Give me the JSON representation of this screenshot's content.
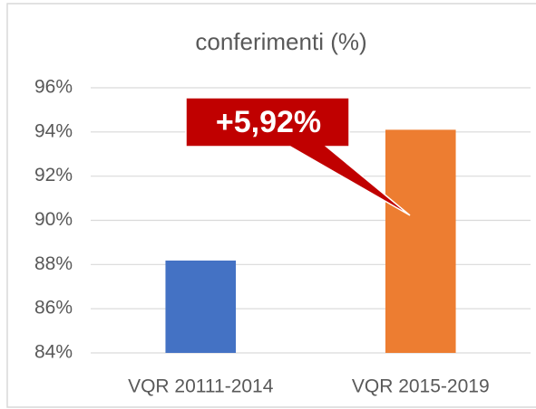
{
  "chart_data": {
    "type": "bar",
    "title": "conferimenti (%)",
    "categories": [
      "VQR 20111-2014",
      "VQR 2015-2019"
    ],
    "values": [
      88.18,
      94.1
    ],
    "colors": [
      "#4472c4",
      "#ed7d31"
    ],
    "ylim": [
      84,
      96
    ],
    "yticks": [
      {
        "value": 84,
        "label": "84%"
      },
      {
        "value": 86,
        "label": "86%"
      },
      {
        "value": 88,
        "label": "88%"
      },
      {
        "value": 90,
        "label": "90%"
      },
      {
        "value": 92,
        "label": "92%"
      },
      {
        "value": 94,
        "label": "94%"
      },
      {
        "value": 96,
        "label": "96%"
      }
    ],
    "grid": true,
    "annotation": "+5,92%"
  }
}
